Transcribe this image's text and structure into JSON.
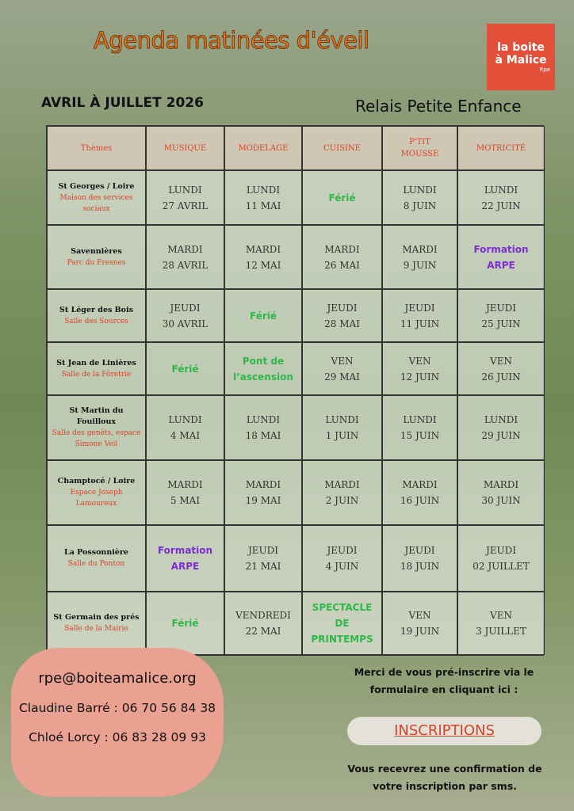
{
  "header": {
    "title": "Agenda matinées d'éveil",
    "period": "AVRIL À JUILLET 2026",
    "organization": "Relais Petite Enfance"
  },
  "logo": {
    "line1": "la boite",
    "line2": "à Malice",
    "tag": "Rpe"
  },
  "table": {
    "headers": [
      [
        "Thèmes"
      ],
      [
        "MUSIQUE"
      ],
      [
        "MODELAGE"
      ],
      [
        "CUISINE"
      ],
      [
        "P'TIT",
        "MOUSSE"
      ],
      [
        "MOTRICITÉ"
      ]
    ],
    "rows": [
      {
        "place": "St Georges / Loire",
        "venue": "Maison des services sociaux",
        "cells": [
          {
            "lines": [
              "LUNDI",
              "27 AVRIL"
            ]
          },
          {
            "lines": [
              "LUNDI",
              "11 MAI"
            ]
          },
          {
            "lines": [
              "Férié"
            ],
            "color": "#2fb84a"
          },
          {
            "lines": [
              "LUNDI",
              "8 JUIN"
            ]
          },
          {
            "lines": [
              "LUNDI",
              "22 JUIN"
            ]
          }
        ]
      },
      {
        "place": "Savennières",
        "venue": "Parc du Fresnes",
        "cells": [
          {
            "lines": [
              "MARDI",
              "28 AVRIL"
            ]
          },
          {
            "lines": [
              "MARDI",
              "12 MAI"
            ]
          },
          {
            "lines": [
              "MARDI",
              "26 MAI"
            ]
          },
          {
            "lines": [
              "MARDI",
              "9 JUIN"
            ]
          },
          {
            "lines": [
              "Formation",
              "ARPE"
            ],
            "color": "#7b2fd0"
          }
        ]
      },
      {
        "place": "St Léger des Bois",
        "venue": "Salle des Sources",
        "cells": [
          {
            "lines": [
              "JEUDI",
              "30 AVRIL"
            ]
          },
          {
            "lines": [
              "Férié"
            ],
            "color": "#2fb84a"
          },
          {
            "lines": [
              "JEUDI",
              "28 MAI"
            ]
          },
          {
            "lines": [
              "JEUDI",
              "11 JUIN"
            ]
          },
          {
            "lines": [
              "JEUDI",
              "25 JUIN"
            ]
          }
        ]
      },
      {
        "place": "St Jean de Linières",
        "venue": "Salle de la Fôretrie",
        "cells": [
          {
            "lines": [
              "Férié"
            ],
            "color": "#2fb84a"
          },
          {
            "lines": [
              "Pont de",
              "l’ascension"
            ],
            "color": "#2fb84a"
          },
          {
            "lines": [
              "VEN",
              "29 MAI"
            ]
          },
          {
            "lines": [
              "VEN",
              "12 JUIN"
            ]
          },
          {
            "lines": [
              "VEN",
              "26 JUIN"
            ]
          }
        ]
      },
      {
        "place": "St Martin du Fouilloux",
        "venue": "Salle des genêts, espace Simone Veil",
        "cells": [
          {
            "lines": [
              "LUNDI",
              "4 MAI"
            ]
          },
          {
            "lines": [
              "LUNDI",
              "18 MAI"
            ]
          },
          {
            "lines": [
              "LUNDI",
              "1 JUIN"
            ]
          },
          {
            "lines": [
              "LUNDI",
              "15 JUIN"
            ]
          },
          {
            "lines": [
              "LUNDI",
              "29 JUIN"
            ]
          }
        ]
      },
      {
        "place": "Champtocé / Loire",
        "venue": "Espace Joseph Lamoureux",
        "cells": [
          {
            "lines": [
              "MARDI",
              "5 MAI"
            ]
          },
          {
            "lines": [
              "MARDI",
              "19 MAI"
            ]
          },
          {
            "lines": [
              "MARDI",
              "2 JUIN"
            ]
          },
          {
            "lines": [
              "MARDI",
              "16 JUIN"
            ]
          },
          {
            "lines": [
              "MARDI",
              "30 JUIN"
            ]
          }
        ]
      },
      {
        "place": "La Possonnière",
        "venue": "Salle du Ponton",
        "cells": [
          {
            "lines": [
              "Formation",
              "ARPE"
            ],
            "color": "#7b2fd0"
          },
          {
            "lines": [
              "JEUDI",
              "21 MAI"
            ]
          },
          {
            "lines": [
              "JEUDI",
              "4 JUIN"
            ]
          },
          {
            "lines": [
              "JEUDI",
              "18 JUIN"
            ]
          },
          {
            "lines": [
              "JEUDI",
              "02 JUILLET"
            ]
          }
        ]
      },
      {
        "place": "St Germain des prés",
        "venue": "Salle de la Mairie",
        "cells": [
          {
            "lines": [
              "Férié"
            ],
            "color": "#2fb84a"
          },
          {
            "lines": [
              "VENDREDI",
              "22 MAI"
            ]
          },
          {
            "lines": [
              "SPECTACLE",
              "DE",
              "PRINTEMPS"
            ],
            "color": "#2fb84a"
          },
          {
            "lines": [
              "VEN",
              "19 JUIN"
            ]
          },
          {
            "lines": [
              "VEN",
              "3 JUILLET"
            ]
          }
        ]
      }
    ]
  },
  "contact": {
    "email": "rpe@boiteamalice.org",
    "phone1": "Claudine Barré : 06 70 56 84 38",
    "phone2": "Chloé Lorcy : 06 83 28 09 93"
  },
  "registration": {
    "note": "Merci de vous pré-inscrire via le formulaire en cliquant ici :",
    "button": "INSCRIPTIONS",
    "confirmation": "Vous recevrez une confirmation de votre inscription par sms."
  }
}
